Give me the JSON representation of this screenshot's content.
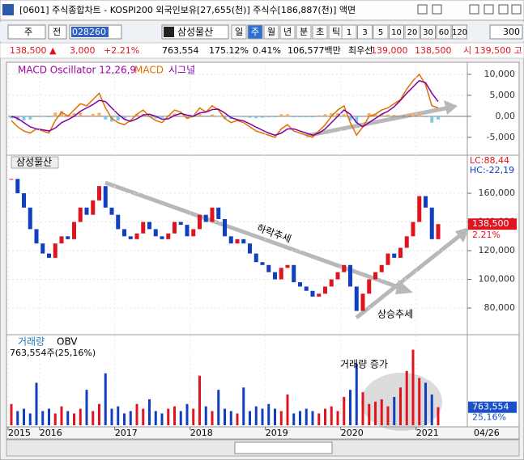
{
  "window": {
    "title": "[0601] 주식종합차트 - KOSPI200 외국인보유[27,655(천)] 주식수[186,887(천)] 액면",
    "toolbar": {
      "unit": "주",
      "scope": "전",
      "code": "028260",
      "name": "삼성물산",
      "periods": [
        "일",
        "주",
        "월",
        "년",
        "분",
        "초",
        "틱"
      ],
      "counts": [
        "1",
        "3",
        "5",
        "10",
        "20",
        "30",
        "60",
        "120"
      ],
      "count_input": "300"
    },
    "info": [
      "138,500 ▲",
      "3,000",
      "+2.21%",
      "763,554",
      "175.12%",
      "0.41%",
      "106,577백만",
      "최우선",
      "139,000",
      "138,500",
      "시 139,500 고"
    ]
  },
  "chart_data": [
    {
      "type": "macd",
      "title": "MACD Oscillator 12,26,9",
      "ylim": [
        -8500,
        12300
      ],
      "yticks": [
        {
          "value": 10000,
          "label": "10,000"
        },
        {
          "value": 5000,
          "label": "5,000"
        },
        {
          "value": 0,
          "label": "0,00"
        },
        {
          "value": -5000,
          "label": "-5,000"
        }
      ],
      "series": [
        {
          "name": "MACD",
          "color": "#e07000",
          "values": [
            -1000,
            -2500,
            -3500,
            -4000,
            -3000,
            -3500,
            -4000,
            -1000,
            1000,
            0,
            1500,
            3000,
            2500,
            4000,
            5500,
            2000,
            -500,
            -1500,
            -2000,
            -1000,
            500,
            1500,
            0,
            -1000,
            -1500,
            0,
            1500,
            1000,
            -500,
            0,
            2000,
            1000,
            2500,
            1500,
            -500,
            -1500,
            -1000,
            -1500,
            -2500,
            -3500,
            -4000,
            -4500,
            -5000,
            -3000,
            -2000,
            -3500,
            -4000,
            -4500,
            -5000,
            -3500,
            -2000,
            0,
            1500,
            2500,
            -1500,
            -4500,
            -2500,
            0,
            500,
            1500,
            2000,
            3000,
            4000,
            6500,
            8500,
            10000,
            7500,
            2500,
            2000
          ]
        },
        {
          "name": "시그널",
          "color": "#8000a0",
          "values": [
            0,
            -500,
            -1500,
            -2500,
            -3000,
            -3200,
            -3500,
            -2800,
            -1500,
            -800,
            0,
            1200,
            2000,
            2800,
            3800,
            3500,
            2000,
            500,
            -700,
            -1200,
            -600,
            300,
            500,
            0,
            -700,
            -600,
            200,
            700,
            300,
            0,
            800,
            1000,
            1600,
            1700,
            800,
            -300,
            -800,
            -1100,
            -1800,
            -2600,
            -3300,
            -4000,
            -4500,
            -4000,
            -3000,
            -3000,
            -3500,
            -4000,
            -4500,
            -4000,
            -3000,
            -1500,
            0,
            1500,
            500,
            -1500,
            -2500,
            -1500,
            -500,
            500,
            1200,
            2300,
            3800,
            5500,
            7000,
            8500,
            8000,
            5500,
            3500
          ]
        }
      ]
    },
    {
      "type": "candlestick",
      "title": "삼성물산",
      "ylim": [
        62000,
        182000
      ],
      "yticks": [
        {
          "value": 160000,
          "label": "160,000"
        },
        {
          "value": 140000,
          "label": "140,000"
        },
        {
          "value": 120000,
          "label": "120,000"
        },
        {
          "value": 100000,
          "label": "100,000"
        },
        {
          "value": 80000,
          "label": "80,000"
        }
      ],
      "up_color": "#e0141e",
      "down_color": "#1040c0",
      "values": [
        170000,
        160000,
        150000,
        135000,
        125000,
        118000,
        115000,
        125000,
        130000,
        128000,
        140000,
        150000,
        145000,
        155000,
        165000,
        150000,
        145000,
        135000,
        130000,
        128000,
        132000,
        140000,
        135000,
        130000,
        128000,
        132000,
        140000,
        138000,
        130000,
        135000,
        145000,
        140000,
        150000,
        142000,
        130000,
        125000,
        128000,
        125000,
        118000,
        112000,
        110000,
        105000,
        100000,
        108000,
        110000,
        98000,
        95000,
        92000,
        88000,
        90000,
        95000,
        100000,
        105000,
        110000,
        95000,
        78000,
        90000,
        100000,
        105000,
        110000,
        118000,
        115000,
        122000,
        130000,
        140000,
        158000,
        150000,
        128000,
        138500
      ],
      "last_label": "138,500",
      "last_change": "2.21%",
      "lc": "LC:88,44",
      "hc": "HC:-22,19",
      "annotations": [
        "하락추세",
        "상승추세"
      ]
    },
    {
      "type": "volume",
      "title": "거래량",
      "title2": "OBV",
      "subtitle": "763,554주(25,16%)",
      "ylim": [
        0,
        3700000
      ],
      "values": [
        900000,
        600000,
        700000,
        500000,
        1800000,
        600000,
        700000,
        500000,
        800000,
        600000,
        500000,
        700000,
        1500000,
        600000,
        900000,
        2200000,
        700000,
        800000,
        500000,
        600000,
        900000,
        700000,
        1100000,
        600000,
        500000,
        700000,
        800000,
        600000,
        900000,
        700000,
        2100000,
        800000,
        600000,
        1500000,
        700000,
        600000,
        500000,
        1600000,
        600000,
        800000,
        700000,
        900000,
        700000,
        600000,
        1300000,
        500000,
        600000,
        700000,
        600000,
        500000,
        700000,
        800000,
        600000,
        1200000,
        1500000,
        2600000,
        1400000,
        900000,
        1000000,
        1100000,
        800000,
        1200000,
        1600000,
        2300000,
        3200000,
        2000000,
        1800000,
        1300000,
        763554
      ],
      "last_label": "763,554",
      "last_pct": "25,16%",
      "annotation": "거래량 증가",
      "xticks": [
        {
          "value": 0,
          "label": "2015"
        },
        {
          "value": 5,
          "label": "2016"
        },
        {
          "value": 17,
          "label": "2017"
        },
        {
          "value": 29,
          "label": "2018"
        },
        {
          "value": 41,
          "label": "2019"
        },
        {
          "value": 53,
          "label": "2020"
        },
        {
          "value": 65,
          "label": "2021"
        }
      ],
      "last_date": "04/26"
    }
  ]
}
